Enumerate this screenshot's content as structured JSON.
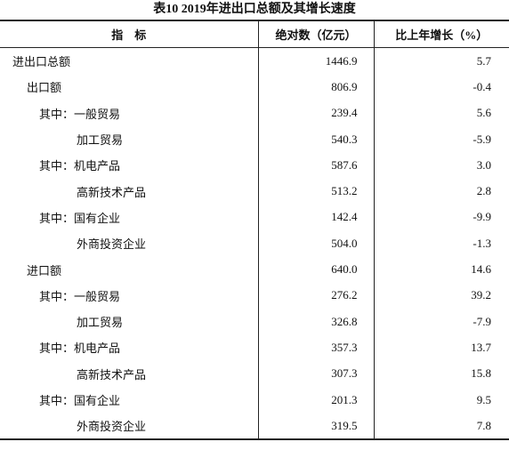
{
  "title": "表10 2019年进出口总额及其增长速度",
  "table": {
    "header": [
      "指　标",
      "绝对数（亿元）",
      "比上年增长（%）"
    ],
    "rows": [
      [
        "进出口总额",
        "1446.9",
        "5.7"
      ],
      [
        "出口额",
        "806.9",
        "-0.4"
      ],
      [
        "其中：一般贸易",
        "239.4",
        "5.6"
      ],
      [
        "加工贸易",
        "540.3",
        "-5.9"
      ],
      [
        "其中：机电产品",
        "587.6",
        "3.0"
      ],
      [
        "高新技术产品",
        "513.2",
        "2.8"
      ],
      [
        "其中：国有企业",
        "142.4",
        "-9.9"
      ],
      [
        "外商投资企业",
        "504.0",
        "-1.3"
      ],
      [
        "进口额",
        "640.0",
        "14.6"
      ],
      [
        "其中：一般贸易",
        "276.2",
        "39.2"
      ],
      [
        "加工贸易",
        "326.8",
        "-7.9"
      ],
      [
        "其中：机电产品",
        "357.3",
        "13.7"
      ],
      [
        "高新技术产品",
        "307.3",
        "15.8"
      ],
      [
        "其中：国有企业",
        "201.3",
        "9.5"
      ],
      [
        "外商投资企业",
        "319.5",
        "7.8"
      ]
    ]
  }
}
